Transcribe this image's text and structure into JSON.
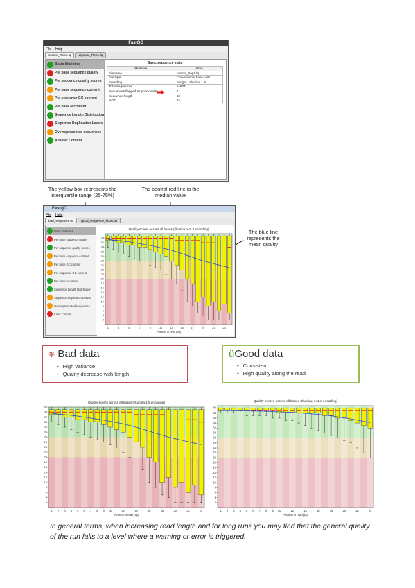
{
  "screen1": {
    "title": "FastQC",
    "menu": [
      "File",
      "Help"
    ],
    "tabs": [
      "control_Rep1.fq",
      "dignase_Rep1.fq"
    ],
    "modules": [
      {
        "label": "Basic Statistics",
        "status": "pass"
      },
      {
        "label": "Per base sequence quality",
        "status": "fail"
      },
      {
        "label": "Per sequence quality scores",
        "status": "pass"
      },
      {
        "label": "Per base sequence content",
        "status": "warn"
      },
      {
        "label": "Per sequence GC content",
        "status": "warn"
      },
      {
        "label": "Per base N content",
        "status": "pass"
      },
      {
        "label": "Sequence Length Distribution",
        "status": "pass"
      },
      {
        "label": "Sequence Duplication Levels",
        "status": "fail"
      },
      {
        "label": "Overrepresented sequences",
        "status": "warn"
      },
      {
        "label": "Adapter Content",
        "status": "pass"
      }
    ],
    "table": {
      "title": "Basic sequence stats",
      "headers": [
        "Measure",
        "Value"
      ],
      "rows": [
        [
          "Filename",
          "control_Rep1.fq"
        ],
        [
          "File type",
          "Conventional base calls"
        ],
        [
          "Encoding",
          "Sanger / Illumina 1.9"
        ],
        [
          "Total Sequences",
          "54637"
        ],
        [
          "Sequences flagged as poor quality",
          "0"
        ],
        [
          "Sequence length",
          "50"
        ],
        [
          "%GC",
          "44"
        ]
      ]
    }
  },
  "annotations": {
    "yellow_box": "The yellow box represents the interquartile range (25-75%)",
    "red_line": "The central red line is the median value",
    "blue_line": "The blue line represents the mean quality"
  },
  "screen2": {
    "title": "FastQC",
    "menu": [
      "File",
      "Help"
    ],
    "tabs": [
      "bad_sequence.txt",
      "good_sequence_short.txt"
    ],
    "modules": [
      {
        "label": "Basic Statistics",
        "status": "pass"
      },
      {
        "label": "Per base sequence quality",
        "status": "fail"
      },
      {
        "label": "Per sequence quality scores",
        "status": "pass"
      },
      {
        "label": "Per base sequence content",
        "status": "warn"
      },
      {
        "label": "Per base GC content",
        "status": "warn"
      },
      {
        "label": "Per sequence GC content",
        "status": "warn"
      },
      {
        "label": "Per base N content",
        "status": "pass"
      },
      {
        "label": "Sequence Length Distribution",
        "status": "pass"
      },
      {
        "label": "Sequence Duplication Levels",
        "status": "warn"
      },
      {
        "label": "Overrepresented sequences",
        "status": "warn"
      },
      {
        "label": "Kmer Content",
        "status": "fail"
      }
    ]
  },
  "bad_box": {
    "title": "Bad data",
    "bullets": [
      "High variance",
      "Quality decrease with length"
    ]
  },
  "good_box": {
    "icon": "ü",
    "title": "Good data",
    "bullets": [
      "Consistent",
      "High quality along the read"
    ]
  },
  "quality_charts": [
    {
      "title": "Quality scores across all bases (Illumina >v1.3 encoding)",
      "xlabel": "Position in read (bp)",
      "x": [
        1,
        2,
        3,
        4,
        5,
        6,
        7,
        8,
        9,
        10,
        11,
        12,
        13,
        14,
        15,
        16,
        17,
        18,
        19,
        20,
        21,
        22,
        23,
        24
      ],
      "xlim": [
        0.5,
        24.5
      ],
      "xticks": [
        1,
        3,
        5,
        7,
        9,
        11,
        13,
        15,
        17,
        19,
        21,
        23
      ],
      "ylim": [
        0,
        40
      ],
      "yticks": [
        38,
        36,
        34,
        32,
        30,
        28,
        26,
        24,
        22,
        20,
        18,
        16,
        14,
        12,
        10,
        8,
        6,
        4,
        2
      ],
      "bands": [
        {
          "from": 28,
          "to": 40,
          "color": "#b8e0b0"
        },
        {
          "from": 20,
          "to": 28,
          "color": "#e8d8b0"
        },
        {
          "from": 0,
          "to": 20,
          "color": "#e8b4b8"
        }
      ],
      "low": [
        34,
        33,
        32,
        31,
        30,
        29,
        28,
        27,
        26,
        25,
        24,
        22,
        20,
        18,
        15,
        10,
        8,
        5,
        4,
        2,
        2,
        2,
        2,
        2
      ],
      "q1": [
        37,
        37,
        36,
        36,
        35,
        35,
        34,
        34,
        33,
        32,
        31,
        30,
        28,
        26,
        24,
        20,
        18,
        10,
        12,
        8,
        10,
        6,
        9,
        5
      ],
      "median": [
        38,
        38,
        38,
        38,
        38,
        38,
        38,
        38,
        38,
        38,
        38,
        38,
        38,
        37,
        37,
        37,
        37,
        37,
        36,
        36,
        36,
        35,
        35,
        34
      ],
      "q3": [
        39,
        39,
        39,
        39,
        39,
        39,
        39,
        39,
        39,
        39,
        39,
        39,
        39,
        39,
        39,
        39,
        39,
        39,
        39,
        39,
        39,
        39,
        39,
        39
      ],
      "high": [
        40,
        40,
        40,
        40,
        40,
        40,
        40,
        40,
        40,
        40,
        40,
        40,
        40,
        40,
        40,
        40,
        40,
        40,
        40,
        40,
        40,
        40,
        40,
        40
      ],
      "mean": [
        37.5,
        37.2,
        37,
        36.7,
        36.4,
        36,
        35.6,
        35.2,
        34.8,
        34.3,
        33.8,
        33.3,
        32.7,
        32,
        31.2,
        30.4,
        29.6,
        28.8,
        28,
        27.4,
        26.8,
        26.2,
        25.6,
        25
      ],
      "box_color": "#f2f200",
      "median_color": "#e00000",
      "mean_color": "#2a4fd0"
    },
    {
      "title": "Quality scores across all bases (Illumina 1.5 encoding)",
      "xlabel": "Position in read (bp)",
      "x": [
        1,
        2,
        3,
        4,
        5,
        6,
        7,
        8,
        9,
        10,
        11,
        12,
        13,
        14,
        15,
        16,
        17,
        18,
        19,
        20,
        21,
        22,
        23,
        24
      ],
      "xlim": [
        0.5,
        24.5
      ],
      "xticks": [
        1,
        2,
        3,
        4,
        5,
        6,
        7,
        8,
        9,
        10,
        12,
        14,
        16,
        18,
        20,
        22,
        24
      ],
      "ylim": [
        0,
        40
      ],
      "yticks": [
        40,
        38,
        36,
        34,
        32,
        30,
        28,
        26,
        24,
        22,
        20,
        18,
        16,
        14,
        12,
        10,
        8,
        6,
        4,
        2
      ],
      "bands": [
        {
          "from": 28,
          "to": 40,
          "color": "#b8e0b0"
        },
        {
          "from": 20,
          "to": 28,
          "color": "#e8d8b0"
        },
        {
          "from": 0,
          "to": 20,
          "color": "#e8b4b8"
        }
      ],
      "low": [
        34,
        33,
        32,
        31,
        30,
        29,
        28,
        27,
        26,
        25,
        24,
        22,
        20,
        18,
        15,
        10,
        8,
        5,
        4,
        2,
        2,
        2,
        2,
        2
      ],
      "q1": [
        37,
        37,
        36,
        36,
        35,
        35,
        34,
        34,
        33,
        32,
        31,
        30,
        28,
        26,
        24,
        20,
        18,
        10,
        12,
        8,
        10,
        6,
        9,
        5
      ],
      "median": [
        38,
        38,
        38,
        38,
        38,
        38,
        38,
        38,
        38,
        38,
        38,
        38,
        38,
        37,
        37,
        37,
        37,
        37,
        36,
        36,
        36,
        35,
        35,
        34
      ],
      "q3": [
        39,
        39,
        39,
        39,
        39,
        39,
        39,
        39,
        39,
        39,
        39,
        39,
        39,
        39,
        39,
        39,
        39,
        39,
        39,
        39,
        39,
        39,
        39,
        39
      ],
      "high": [
        40,
        40,
        40,
        40,
        40,
        40,
        40,
        40,
        40,
        40,
        40,
        40,
        40,
        40,
        40,
        40,
        40,
        40,
        40,
        40,
        40,
        40,
        40,
        40
      ],
      "mean": [
        37.5,
        37.2,
        37,
        36.7,
        36.4,
        36,
        35.6,
        35.2,
        34.8,
        34.3,
        33.8,
        33.3,
        32.7,
        32,
        31.2,
        30.4,
        29.6,
        28.8,
        28,
        27.4,
        26.8,
        26.2,
        25.6,
        25
      ],
      "box_color": "#f2f200",
      "median_color": "#e00000",
      "mean_color": "#2a4fd0"
    },
    {
      "title": "Quality scores across all bases (Illumina >v1.3 encoding)",
      "xlabel": "Position in read (bp)",
      "x": [
        1,
        2,
        3,
        4,
        5,
        6,
        7,
        8,
        9,
        10,
        11,
        12,
        13,
        14,
        15,
        16,
        17,
        18,
        19,
        20,
        21,
        22,
        23,
        24
      ],
      "xlim": [
        0.5,
        24.5
      ],
      "xticks": [
        1,
        2,
        3,
        4,
        5,
        6,
        7,
        8,
        9,
        10,
        12,
        14,
        16,
        18,
        20,
        22,
        24
      ],
      "ylim": [
        0,
        41
      ],
      "yticks": [
        40,
        38,
        36,
        34,
        32,
        30,
        28,
        26,
        24,
        22,
        20,
        18,
        16,
        14,
        12,
        10,
        8,
        6,
        4,
        2
      ],
      "bands": [
        {
          "from": 28,
          "to": 41,
          "color": "#c4e8bc"
        },
        {
          "from": 20,
          "to": 28,
          "color": "#ede0c0"
        },
        {
          "from": 0,
          "to": 20,
          "color": "#ecc2c6"
        }
      ],
      "low": [
        38,
        38,
        38,
        38,
        37,
        37,
        37,
        37,
        36,
        36,
        35,
        35,
        34,
        33,
        32,
        31,
        30,
        29,
        28,
        27,
        26,
        24,
        22,
        20
      ],
      "q1": [
        39,
        39,
        39,
        39,
        39,
        39,
        39,
        39,
        39,
        38,
        38,
        38,
        38,
        38,
        38,
        38,
        37,
        37,
        36,
        36,
        35,
        34,
        33,
        32
      ],
      "median": [
        39,
        39,
        39,
        39,
        39,
        39,
        39,
        39,
        39,
        39,
        39,
        39,
        39,
        39,
        39,
        39,
        39,
        39,
        39,
        39,
        39,
        39,
        39,
        39
      ],
      "q3": [
        40,
        40,
        40,
        40,
        40,
        40,
        40,
        40,
        40,
        40,
        40,
        40,
        40,
        40,
        40,
        40,
        40,
        40,
        40,
        40,
        40,
        40,
        40,
        40
      ],
      "high": [
        40,
        40,
        40,
        40,
        40,
        40,
        40,
        40,
        40,
        40,
        40,
        40,
        40,
        40,
        40,
        40,
        40,
        40,
        40,
        40,
        40,
        40,
        40,
        40
      ],
      "mean": [
        39,
        39,
        39,
        38.9,
        38.9,
        38.8,
        38.8,
        38.7,
        38.6,
        38.5,
        38.4,
        38.3,
        38.1,
        37.9,
        37.7,
        37.5,
        37.2,
        36.9,
        36.5,
        36.1,
        35.7,
        35.2,
        34.7,
        34.2
      ],
      "box_color": "#f2f200",
      "median_color": "#e00000",
      "mean_color": "#2a4fd0"
    }
  ],
  "caption": "In general terms, when increasing read length and for long runs you may find that the general quality of the run falls to a level where a warning or error is triggered."
}
